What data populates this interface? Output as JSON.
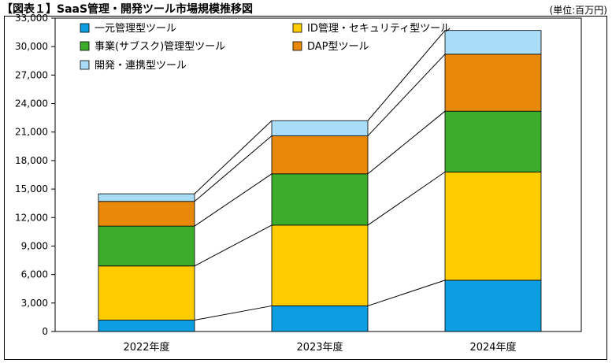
{
  "header": {
    "title": "【図表１】SaaS管理・開発ツール市場規模推移図",
    "unit": "(単位:百万円)"
  },
  "chart_data": {
    "type": "bar",
    "stacked": true,
    "categories": [
      "2022年度",
      "2023年度",
      "2024年度"
    ],
    "series": [
      {
        "name": "一元管理型ツール",
        "color": "#0c9ee0",
        "values": [
          1200,
          2700,
          5400
        ]
      },
      {
        "name": "ID管理・セキュリティ型ツール",
        "color": "#ffcc00",
        "values": [
          5700,
          8500,
          11400
        ]
      },
      {
        "name": "事業(サブスク)管理型ツール",
        "color": "#3cad2b",
        "values": [
          4200,
          5400,
          6400
        ]
      },
      {
        "name": "DAP型ツール",
        "color": "#e8890b",
        "values": [
          2600,
          4000,
          6000
        ]
      },
      {
        "name": "開発・連携型ツール",
        "color": "#a9dcf7",
        "values": [
          800,
          1600,
          2500
        ]
      }
    ],
    "ylim": [
      0,
      33000
    ],
    "yticks": [
      0,
      3000,
      6000,
      9000,
      12000,
      15000,
      18000,
      21000,
      24000,
      27000,
      30000,
      33000
    ],
    "ytick_labels": [
      "0",
      "3,000",
      "6,000",
      "9,000",
      "12,000",
      "15,000",
      "18,000",
      "21,000",
      "24,000",
      "27,000",
      "30,000",
      "33,000"
    ],
    "grid": false,
    "legend_position": "top-left inside plot",
    "legend_order": [
      0,
      1,
      2,
      3,
      4
    ],
    "connector_lines": true
  }
}
